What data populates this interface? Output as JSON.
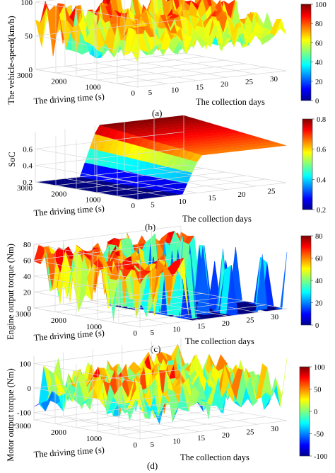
{
  "chart_data": [
    {
      "type": "surface3d",
      "caption": "(a)",
      "zlabel": "The vehicle-speed(km/h)",
      "xlabel": "The collection days",
      "ylabel": "The driving time (s)",
      "x_ticks": [
        "5",
        "10",
        "15",
        "20",
        "25",
        "30"
      ],
      "y_ticks": [
        "3000",
        "2000",
        "1000",
        "0"
      ],
      "z_ticks": [
        "0",
        "50",
        "100"
      ],
      "zlim": [
        0,
        100
      ],
      "colorbar_ticks": [
        "0",
        "20",
        "40",
        "60",
        "80",
        "100"
      ],
      "colorbar_range": [
        0,
        100
      ],
      "colormap": "jet",
      "surface": {
        "base": 55,
        "amplitude": 45,
        "pattern": "noisy"
      }
    },
    {
      "type": "surface3d",
      "caption": "(b)",
      "zlabel": "SoC",
      "xlabel": "The collection days",
      "ylabel": "The driving time (s)",
      "x_ticks": [
        "5",
        "10",
        "15",
        "20",
        "25"
      ],
      "y_ticks": [
        "3000",
        "2000",
        "1000",
        "0"
      ],
      "z_ticks": [
        "0.2",
        "0.4",
        "0.6"
      ],
      "zlim": [
        0.2,
        0.8
      ],
      "colorbar_ticks": [
        "0.2",
        "0.4",
        "0.6",
        "0.8"
      ],
      "colorbar_range": [
        0.2,
        0.8
      ],
      "colormap": "jet",
      "surface": {
        "base": 0.2,
        "amplitude": 0.6,
        "pattern": "soc"
      }
    },
    {
      "type": "surface3d",
      "caption": "(c)",
      "zlabel": "Engine output torque (Nm)",
      "xlabel": "The collection days",
      "ylabel": "The driving time (s)",
      "x_ticks": [
        "5",
        "10",
        "15",
        "20",
        "25",
        "30"
      ],
      "y_ticks": [
        "3000",
        "2000",
        "1000",
        "0"
      ],
      "z_ticks": [
        "0",
        "20",
        "40",
        "60",
        "80"
      ],
      "zlim": [
        0,
        80
      ],
      "colorbar_ticks": [
        "0",
        "20",
        "40",
        "60",
        "80"
      ],
      "colorbar_range": [
        0,
        80
      ],
      "colormap": "jet",
      "surface": {
        "base": 60,
        "amplitude": 20,
        "pattern": "engine"
      }
    },
    {
      "type": "surface3d",
      "caption": "(d)",
      "zlabel": "Motor output torque (Nm)",
      "xlabel": "The collection days",
      "ylabel": "The driving time (s)",
      "x_ticks": [
        "5",
        "10",
        "15",
        "20",
        "25",
        "30"
      ],
      "y_ticks": [
        "3000",
        "2000",
        "1000",
        "0"
      ],
      "z_ticks": [
        "-100",
        "0",
        "100"
      ],
      "zlim": [
        -130,
        130
      ],
      "colorbar_ticks": [
        "100",
        "50",
        "0",
        "-50",
        "-100"
      ],
      "colorbar_range": [
        -100,
        100
      ],
      "colormap": "jet",
      "surface": {
        "base": 0,
        "amplitude": 120,
        "pattern": "motor"
      }
    }
  ]
}
